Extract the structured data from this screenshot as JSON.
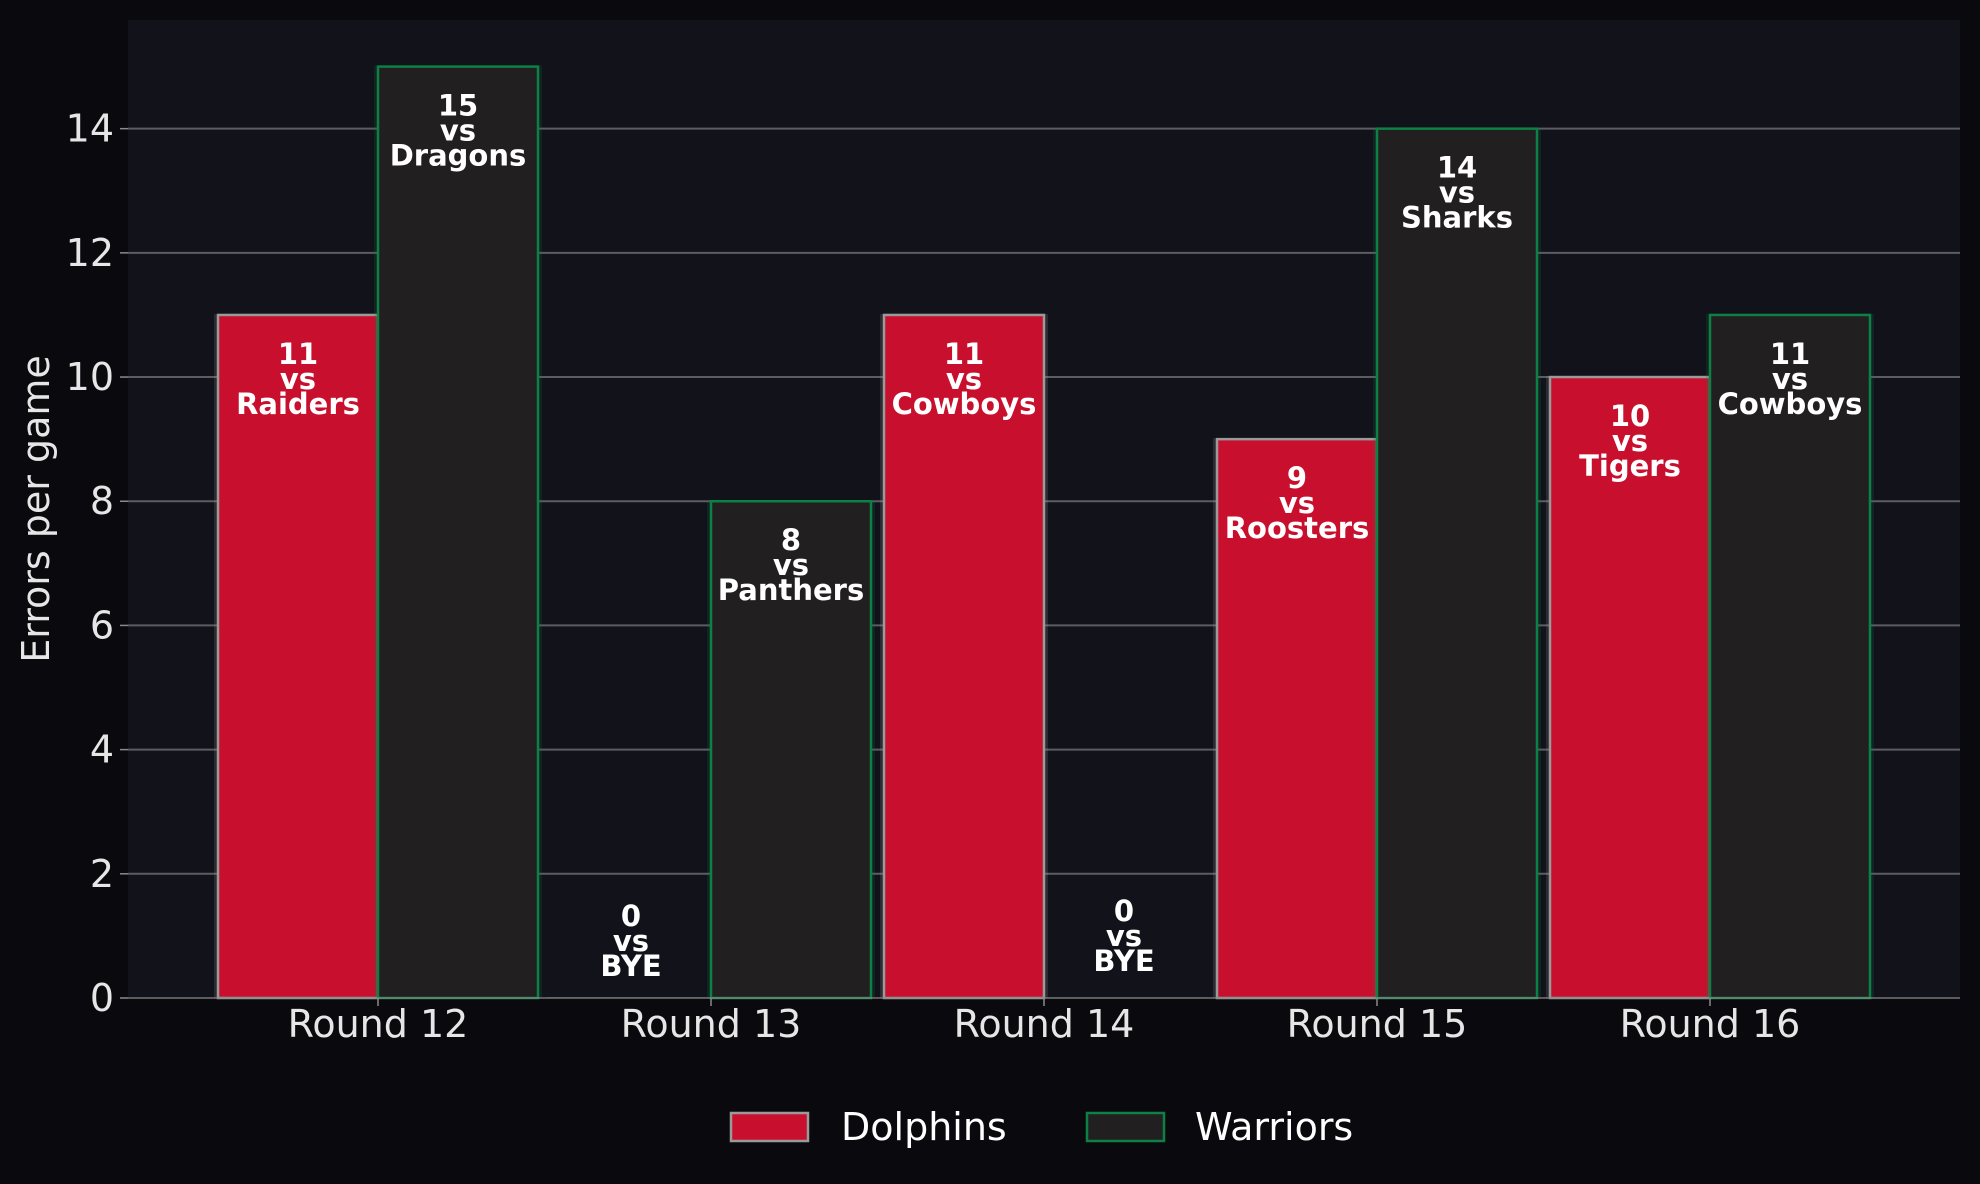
{
  "chart_data": {
    "type": "bar",
    "ylabel": "Errors per game",
    "xlabel": "",
    "ylim": [
      0,
      15.75
    ],
    "yticks": [
      0,
      2,
      4,
      6,
      8,
      10,
      12,
      14
    ],
    "grid": "horizontal",
    "legend_position": "bottom-center",
    "categories": [
      "Round 12",
      "Round 13",
      "Round 14",
      "Round 15",
      "Round 16"
    ],
    "series": [
      {
        "name": "Dolphins",
        "color": "#c8102e",
        "edge_color": "#9a9a9a",
        "values": [
          11,
          0,
          11,
          9,
          10
        ],
        "opponents": [
          "Raiders",
          "BYE",
          "Cowboys",
          "Roosters",
          "Tigers"
        ]
      },
      {
        "name": "Warriors",
        "color": "#221f20",
        "edge_color": "#0c8045",
        "values": [
          15,
          8,
          0,
          14,
          11
        ],
        "opponents": [
          "Dragons",
          "Panthers",
          "BYE",
          "Sharks",
          "Cowboys"
        ]
      }
    ],
    "vs_text": "vs"
  }
}
